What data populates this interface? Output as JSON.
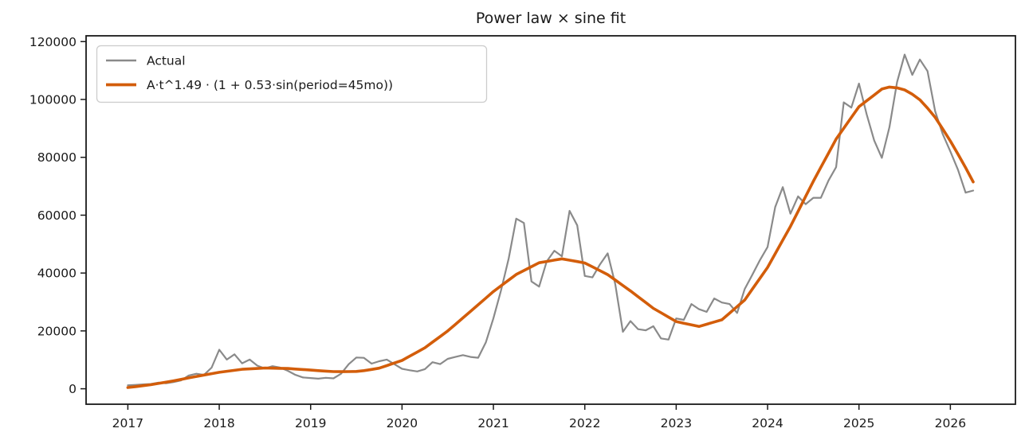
{
  "chart_data": {
    "type": "line",
    "title": "Power law × sine fit",
    "xlabel": "",
    "ylabel": "",
    "x_start": "2017-01",
    "frequency": "monthly",
    "points_per_year": 12,
    "x_start_year": 2017,
    "xlim": [
      2016.543,
      2026.712
    ],
    "ylim": [
      -5340,
      122000
    ],
    "xticks": [
      2017,
      2018,
      2019,
      2020,
      2021,
      2022,
      2023,
      2024,
      2025,
      2026
    ],
    "yticks": [
      0,
      20000,
      40000,
      60000,
      80000,
      100000,
      120000
    ],
    "grid": false,
    "legend_position": "upper left",
    "background_color": "#ffffff",
    "axes_color": "#1a1a1a",
    "series": [
      {
        "name": "Actual",
        "color": "#8a8a8a",
        "line_width": 2.2,
        "values": [
          1200,
          1350,
          1500,
          1650,
          2100,
          1900,
          2300,
          2900,
          4600,
          5200,
          4800,
          7300,
          13500,
          10100,
          11900,
          8800,
          10100,
          8000,
          7000,
          7800,
          7300,
          6200,
          4800,
          3900,
          3700,
          3500,
          3800,
          3600,
          5200,
          8500,
          10800,
          10700,
          8700,
          9500,
          10100,
          8500,
          6900,
          6400,
          6000,
          6800,
          9170,
          8530,
          10350,
          11000,
          11640,
          11000,
          10730,
          16000,
          24300,
          34000,
          45000,
          58800,
          57300,
          37100,
          35300,
          44000,
          47700,
          45800,
          61500,
          56500,
          39000,
          38500,
          43000,
          46800,
          36200,
          19700,
          23400,
          20600,
          20200,
          21600,
          17400,
          17000,
          24300,
          23800,
          29300,
          27500,
          26600,
          31200,
          29800,
          29300,
          26200,
          34500,
          39400,
          44500,
          49000,
          62800,
          69700,
          60500,
          66500,
          63800,
          66000,
          66000,
          72000,
          76600,
          99000,
          97200,
          105500,
          94900,
          85800,
          79800,
          90400,
          106000,
          115500,
          108500,
          113800,
          109800,
          95900,
          88000,
          82000,
          75700,
          67800,
          68500
        ]
      },
      {
        "name": "A·t^1.49 · (1 + 0.53·sin(period=45mo))",
        "color": "#d35d0a",
        "line_width": 3.6,
        "values": [
          430,
          750,
          1070,
          1390,
          1840,
          2290,
          2740,
          3250,
          3760,
          4270,
          4750,
          5220,
          5700,
          6040,
          6390,
          6730,
          6880,
          7020,
          7170,
          7120,
          7070,
          7020,
          6830,
          6640,
          6450,
          6280,
          6110,
          5930,
          5910,
          5930,
          5980,
          6270,
          6690,
          7120,
          8010,
          8900,
          9790,
          11250,
          12710,
          14170,
          16110,
          18050,
          19990,
          22250,
          24510,
          26770,
          29050,
          31330,
          33610,
          35580,
          37560,
          39530,
          40870,
          42210,
          43550,
          44010,
          44460,
          44920,
          44440,
          43970,
          43490,
          42150,
          40810,
          39470,
          37590,
          35700,
          33820,
          31820,
          29810,
          27810,
          26280,
          24760,
          23230,
          22660,
          22100,
          21530,
          22290,
          23060,
          23830,
          26120,
          28410,
          30700,
          34450,
          38200,
          41950,
          46670,
          51380,
          56100,
          61300,
          66500,
          71700,
          76570,
          81430,
          86300,
          90030,
          93770,
          97500,
          99520,
          101540,
          103600,
          104300,
          104000,
          103300,
          101800,
          99900,
          97000,
          93800,
          89800,
          85600,
          81100,
          76400,
          71500
        ]
      }
    ]
  },
  "legend": {
    "items": [
      {
        "label": "Actual",
        "color": "#8a8a8a"
      },
      {
        "label": "A·t^1.49 · (1 + 0.53·sin(period=45mo))",
        "color": "#d35d0a"
      }
    ]
  }
}
